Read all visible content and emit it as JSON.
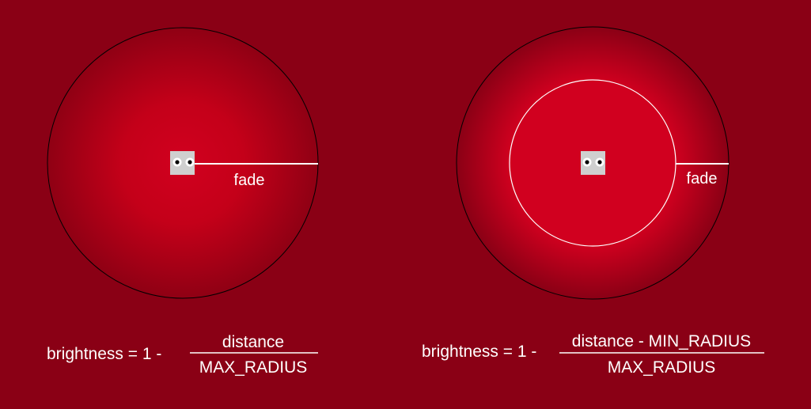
{
  "colors": {
    "background": "#8a0015",
    "glow_center": "#d1001f",
    "glow_edge": "#8a0015",
    "outline": "#000000",
    "line": "#ffffff",
    "character_body": "#cfcfcf",
    "eye_white": "#ffffff",
    "pupil": "#000000"
  },
  "left_panel": {
    "fade_label": "fade",
    "formula_prefix": "brightness = 1 -",
    "numerator": "distance",
    "denominator": "MAX_RADIUS"
  },
  "right_panel": {
    "fade_label": "fade",
    "formula_prefix": "brightness = 1 -",
    "numerator": "distance - MIN_RADIUS",
    "denominator": "MAX_RADIUS"
  }
}
